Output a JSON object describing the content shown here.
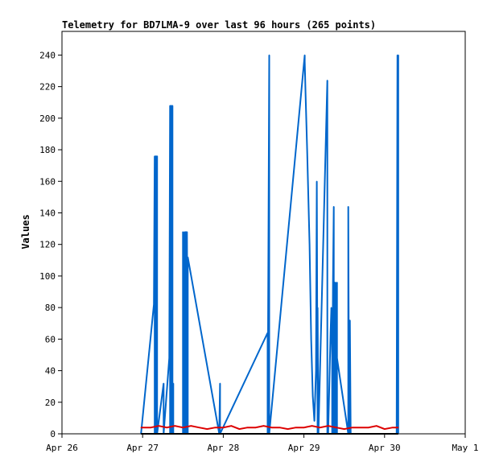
{
  "chart_data": {
    "type": "line",
    "title": "Telemetry for BD7LMA-9 over last 96 hours (265 points)",
    "xlabel": "",
    "ylabel": "Values",
    "x_ticks": [
      "Apr 26",
      "Apr 27",
      "Apr 28",
      "Apr 29",
      "Apr 30",
      "May 1"
    ],
    "xlim": [
      "Apr 26",
      "May 1"
    ],
    "y_ticks": [
      0,
      20,
      40,
      60,
      80,
      100,
      120,
      140,
      160,
      180,
      200,
      220,
      240
    ],
    "ylim": [
      0,
      255
    ],
    "grid": false,
    "legend": "none",
    "colors": {
      "series_blue": "#0066cc",
      "series_red": "#dd0000",
      "series_black": "#000000"
    },
    "series": [
      {
        "color": "#0066cc",
        "x": [
          0.98,
          1.14,
          1.15,
          1.15,
          1.16,
          1.16,
          1.17,
          1.17,
          1.18,
          1.18,
          1.26,
          1.26,
          1.26,
          1.33,
          1.34,
          1.34,
          1.35,
          1.35,
          1.36,
          1.36,
          1.37,
          1.37,
          1.38,
          1.38,
          1.5,
          1.5,
          1.51,
          1.51,
          1.52,
          1.52,
          1.53,
          1.53,
          1.54,
          1.54,
          1.55,
          1.55,
          1.56,
          1.56,
          1.95,
          1.96,
          1.96,
          2.55,
          2.55,
          2.57,
          2.57,
          3.01,
          3.01,
          3.02,
          3.04,
          3.07,
          3.09,
          3.11,
          3.13,
          3.15,
          3.16,
          3.17,
          3.17,
          3.18,
          3.18,
          3.29,
          3.29,
          3.3,
          3.3,
          3.33,
          3.34,
          3.35,
          3.35,
          3.36,
          3.37,
          3.37,
          3.38,
          3.38,
          3.39,
          3.39,
          3.4,
          3.4,
          3.41,
          3.41,
          3.41,
          3.41,
          3.55,
          3.55,
          3.56,
          3.56,
          3.57,
          3.57,
          3.58,
          3.58,
          4.15,
          4.16,
          4.16,
          4.17,
          4.17
        ],
        "y": [
          0,
          82,
          176,
          0,
          176,
          0,
          176,
          0,
          176,
          0,
          32,
          0,
          0,
          48,
          208,
          0,
          208,
          0,
          208,
          0,
          208,
          0,
          32,
          0,
          0,
          128,
          0,
          64,
          0,
          128,
          0,
          128,
          0,
          128,
          0,
          128,
          0,
          112,
          0,
          32,
          0,
          64,
          0,
          240,
          0,
          240,
          236,
          216,
          180,
          120,
          60,
          24,
          8,
          40,
          160,
          0,
          80,
          0,
          0,
          224,
          0,
          0,
          0,
          64,
          80,
          48,
          0,
          96,
          144,
          0,
          96,
          0,
          96,
          0,
          48,
          0,
          96,
          0,
          0,
          48,
          0,
          144,
          0,
          72,
          0,
          72,
          0,
          0,
          0,
          240,
          0,
          240,
          0
        ]
      },
      {
        "color": "#dd0000",
        "x": [
          0.98,
          1.1,
          1.2,
          1.3,
          1.4,
          1.5,
          1.6,
          1.7,
          1.8,
          1.9,
          2.0,
          2.1,
          2.2,
          2.3,
          2.4,
          2.5,
          2.6,
          2.7,
          2.8,
          2.9,
          3.0,
          3.1,
          3.2,
          3.3,
          3.4,
          3.5,
          3.6,
          3.7,
          3.8,
          3.9,
          4.0,
          4.1,
          4.17
        ],
        "y": [
          4,
          4,
          5,
          4,
          5,
          4,
          5,
          4,
          3,
          4,
          4,
          5,
          3,
          4,
          4,
          5,
          4,
          4,
          3,
          4,
          4,
          5,
          4,
          5,
          4,
          3,
          4,
          4,
          4,
          5,
          3,
          4,
          4
        ]
      },
      {
        "color": "#000000",
        "x": [
          0.98,
          4.17
        ],
        "y": [
          0,
          0
        ]
      }
    ]
  }
}
